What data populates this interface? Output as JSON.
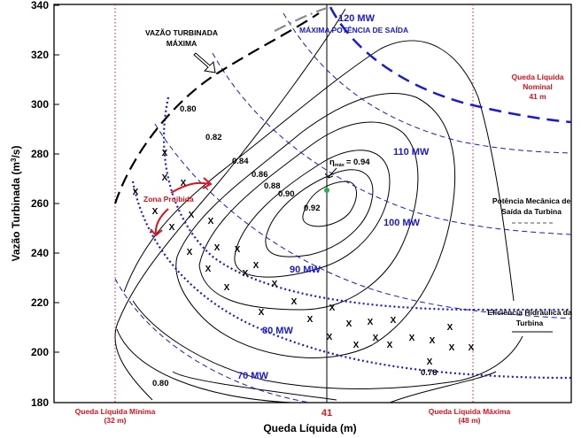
{
  "chart_data": {
    "type": "line",
    "xlabel": "Queda Líquida (m)",
    "ylabel_main": "Vazão Turbinada (m",
    "ylabel_sup": "3",
    "ylabel_tail": "/s)",
    "ylim": [
      180,
      340
    ],
    "yticks": [
      180,
      200,
      220,
      240,
      260,
      280,
      300,
      320,
      340
    ],
    "xtick_center": "41",
    "min_head": {
      "label1": "Queda Líquida Mínima",
      "label2": "(32 m)",
      "x": 32
    },
    "max_head": {
      "label1": "Queda Líquida Máxima",
      "label2": "(48 m)",
      "x": 48
    },
    "nominal_head": {
      "label1": "Queda Líquida",
      "label2": "Nominal",
      "label3": "41 m",
      "x": 41
    },
    "max_flow_label": [
      "VAZÃO TURBINADA",
      "MÁXIMA"
    ],
    "max_power_label": "MÁXIMA POTÊNCIA DE SAÍDA",
    "power_labels": [
      "120 MW",
      "110 MW",
      "100 MW",
      "90 MW",
      "80 MW",
      "70 MW"
    ],
    "efficiency_labels": [
      "0.80",
      "0.82",
      "0.84",
      "0.86",
      "0.88",
      "0.90",
      "0.92",
      "0.80",
      "0.78"
    ],
    "peak": {
      "eta": "η",
      "sub": "máx",
      "value": "= 0.94"
    },
    "forbidden_zone": "Zona Proibida",
    "legend_power": [
      "Potência Mecânica de",
      "Saída da Turbina"
    ],
    "legend_eff": [
      "Eficiência Hidráulica da",
      "Turbina"
    ],
    "x_marker": "X",
    "colors": {
      "power": "#1a1ad6",
      "red": "#e0141e",
      "efficiency": "#000000",
      "peak": "#2db04a"
    }
  }
}
